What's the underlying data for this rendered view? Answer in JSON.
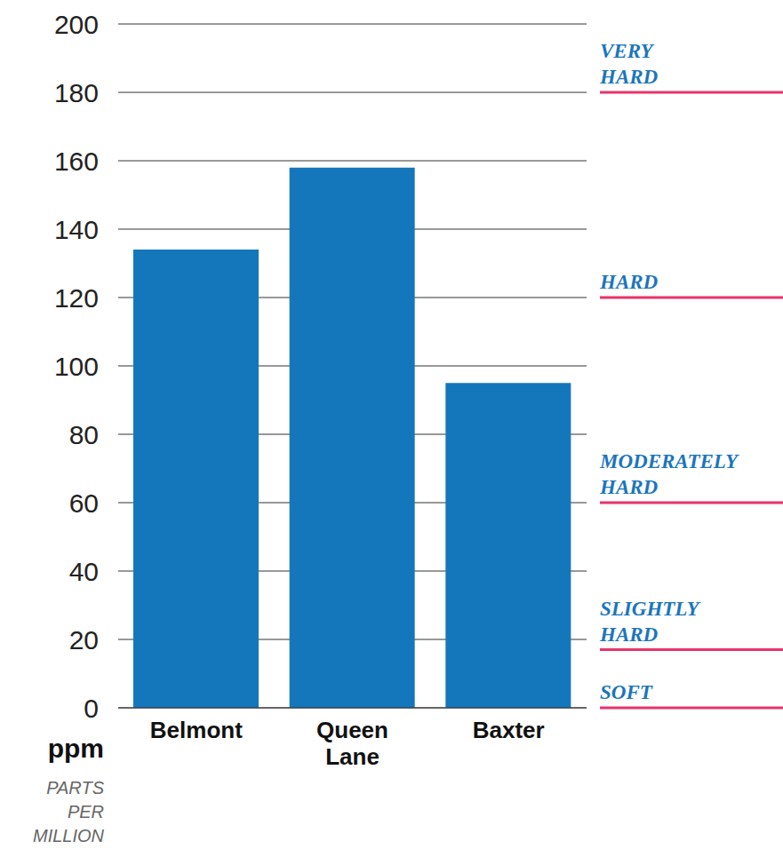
{
  "chart_data": {
    "type": "bar",
    "categories": [
      "Belmont",
      "Queen Lane",
      "Baxter"
    ],
    "values": [
      134,
      158,
      95
    ],
    "color": "#1477bb",
    "ylim": [
      0,
      200
    ],
    "yticks": [
      0,
      20,
      40,
      60,
      80,
      100,
      120,
      140,
      160,
      180,
      200
    ],
    "grid": true,
    "y_label": "ppm",
    "y_sublabel": "PARTS PER MILLION",
    "thresholds": [
      {
        "label": "VERY HARD",
        "value": 180
      },
      {
        "label": "HARD",
        "value": 120
      },
      {
        "label": "MODERATELY HARD",
        "value": 60
      },
      {
        "label": "SLIGHTLY HARD",
        "value": 17
      },
      {
        "label": "SOFT",
        "value": 0
      }
    ]
  }
}
